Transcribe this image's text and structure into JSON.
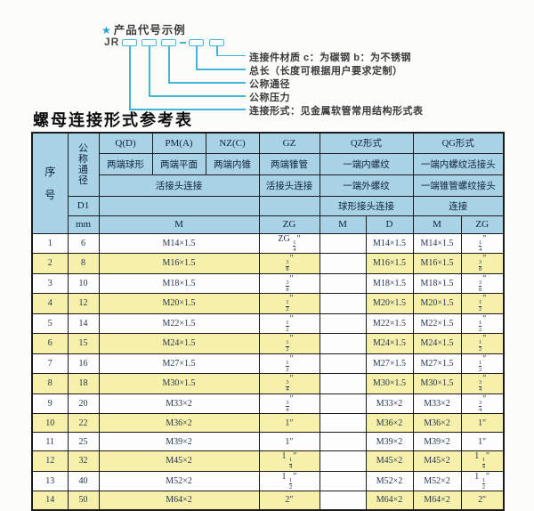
{
  "diagram": {
    "star": "★",
    "title": "产品代号示例",
    "code_prefix": "JR",
    "labels": [
      "连接件材质  c：为碳钢  b：为不锈钢",
      "总长（长度可根据用户要求定制）",
      "公称通径",
      "公称压力",
      "连接形式：见金属软管常用结构形式表"
    ]
  },
  "section_title": "螺母连接形式参考表",
  "table": {
    "header": {
      "seq": "序号",
      "dn": "公称通径",
      "d1": "D1",
      "mm": "mm",
      "col_q": "Q(D)",
      "col_pm": "PM(A)",
      "col_nz": "NZ(C)",
      "col_gz": "GZ",
      "col_qz": "QZ形式",
      "col_qg": "QG形式",
      "q_desc": "两端球形",
      "pm_desc": "两端平面",
      "nz_desc": "两端内锥",
      "gz_desc": "两端锥管",
      "qz_desc1": "一端内螺纹",
      "qg_desc1": "一端内螺纹活接头",
      "union_conn": "活接头连接",
      "gz_conn": "活接头连接",
      "qz_desc2": "一端外螺纹",
      "qg_desc2": "一端锥管螺纹接头",
      "qz_conn": "球形接头连接",
      "qg_conn": "连接",
      "m_label": "M",
      "zg_label": "ZG",
      "qz_m": "M",
      "qz_d": "D",
      "qg_m": "M",
      "qg_zg": "ZG"
    },
    "rows": [
      {
        "seq": "1",
        "dn": "6",
        "m": "M14×1.5",
        "zg": "ZG 1/4″",
        "qz_m": "",
        "qz_d": "M14×1.5",
        "qg_m": "M14×1.5",
        "qg_zg": "1/4″"
      },
      {
        "seq": "2",
        "dn": "8",
        "m": "M16×1.5",
        "zg": "3/8″",
        "qz_m": "",
        "qz_d": "M16×1.5",
        "qg_m": "M16×1.5",
        "qg_zg": "3/8″"
      },
      {
        "seq": "3",
        "dn": "10",
        "m": "M18×1.5",
        "zg": "3/8″",
        "qz_m": "",
        "qz_d": "M18×1.5",
        "qg_m": "M18×1.5",
        "qg_zg": "3/8″"
      },
      {
        "seq": "4",
        "dn": "12",
        "m": "M20×1.5",
        "zg": "1/2″",
        "qz_m": "",
        "qz_d": "M20×1.5",
        "qg_m": "M20×1.5",
        "qg_zg": "1/2″"
      },
      {
        "seq": "5",
        "dn": "14",
        "m": "M22×1.5",
        "zg": "1/2″",
        "qz_m": "",
        "qz_d": "M22×1.5",
        "qg_m": "M22×1.5",
        "qg_zg": "1/2″"
      },
      {
        "seq": "6",
        "dn": "15",
        "m": "M24×1.5",
        "zg": "1/2″",
        "qz_m": "",
        "qz_d": "M24×1.5",
        "qg_m": "M24×1.5",
        "qg_zg": "1/2″"
      },
      {
        "seq": "7",
        "dn": "16",
        "m": "M27×1.5",
        "zg": "1/2″",
        "qz_m": "",
        "qz_d": "M27×1.5",
        "qg_m": "M27×1.5",
        "qg_zg": "1/2″"
      },
      {
        "seq": "8",
        "dn": "18",
        "m": "M30×1.5",
        "zg": "3/4″",
        "qz_m": "",
        "qz_d": "M30×1.5",
        "qg_m": "M30×1.5",
        "qg_zg": "3/4″"
      },
      {
        "seq": "9",
        "dn": "20",
        "m": "M33×2",
        "zg": "3/4″",
        "qz_m": "",
        "qz_d": "M33×2",
        "qg_m": "M33×2",
        "qg_zg": "3/4″"
      },
      {
        "seq": "10",
        "dn": "22",
        "m": "M36×2",
        "zg": "1″",
        "qz_m": "",
        "qz_d": "M36×2",
        "qg_m": "M36×2",
        "qg_zg": "1″"
      },
      {
        "seq": "11",
        "dn": "25",
        "m": "M39×2",
        "zg": "1″",
        "qz_m": "",
        "qz_d": "M39×2",
        "qg_m": "M39×2",
        "qg_zg": "1″"
      },
      {
        "seq": "12",
        "dn": "32",
        "m": "M45×2",
        "zg": "1 1/4″",
        "qz_m": "",
        "qz_d": "M45×2",
        "qg_m": "M45×2",
        "qg_zg": "1 1/4″"
      },
      {
        "seq": "13",
        "dn": "40",
        "m": "M52×2",
        "zg": "1 1/2″",
        "qz_m": "",
        "qz_d": "M52×2",
        "qg_m": "M52×2",
        "qg_zg": "1 1/2″"
      },
      {
        "seq": "14",
        "dn": "50",
        "m": "M64×2",
        "zg": "2″",
        "qz_m": "",
        "qz_d": "M64×2",
        "qg_m": "M64×2",
        "qg_zg": "2″"
      }
    ]
  },
  "colors": {
    "header_bg": "#a8d2e6",
    "row_alt_bg": "#f6f0ab",
    "line_cyan": "#41b7d7",
    "border": "#1a1a1a"
  }
}
